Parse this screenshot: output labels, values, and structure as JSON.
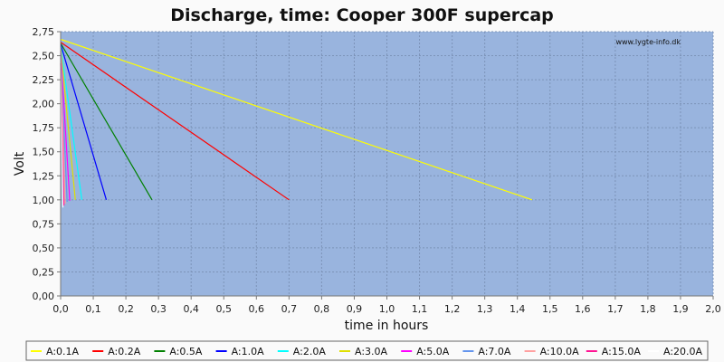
{
  "chart_data": {
    "type": "line",
    "title": "Discharge, time: Cooper 300F supercap",
    "xlabel": "time in hours",
    "ylabel": "Volt",
    "watermark": "www.lygte-info.dk",
    "xlim": [
      0,
      2.0
    ],
    "ylim": [
      0,
      2.75
    ],
    "x_ticks": [
      "0,0",
      "0,1",
      "0,2",
      "0,3",
      "0,4",
      "0,5",
      "0,6",
      "0,7",
      "0,8",
      "0,9",
      "1,0",
      "1,1",
      "1,2",
      "1,3",
      "1,4",
      "1,5",
      "1,6",
      "1,7",
      "1,8",
      "1,9",
      "2,0"
    ],
    "y_ticks": [
      "0,00",
      "0,25",
      "0,50",
      "0,75",
      "1,00",
      "1,25",
      "1,50",
      "1,75",
      "2,00",
      "2,25",
      "2,50",
      "2,75"
    ],
    "grid": true,
    "legend_position": "bottom",
    "background_color": "#99b4de",
    "series": [
      {
        "name": "A:0.1A",
        "color": "#ffff00",
        "x": [
          0,
          1.445
        ],
        "y": [
          2.67,
          1.0
        ]
      },
      {
        "name": "A:0.2A",
        "color": "#ff0000",
        "x": [
          0,
          0.7
        ],
        "y": [
          2.64,
          1.0
        ]
      },
      {
        "name": "A:0.5A",
        "color": "#008000",
        "x": [
          0,
          0.28
        ],
        "y": [
          2.63,
          1.0
        ]
      },
      {
        "name": "A:1.0A",
        "color": "#0000ff",
        "x": [
          0,
          0.14
        ],
        "y": [
          2.62,
          1.0
        ]
      },
      {
        "name": "A:2.0A",
        "color": "#00ffff",
        "x": [
          0,
          0.065
        ],
        "y": [
          2.6,
          1.0
        ]
      },
      {
        "name": "A:3.0A",
        "color": "#e0e000",
        "x": [
          0,
          0.045
        ],
        "y": [
          2.58,
          1.0
        ]
      },
      {
        "name": "A:5.0A",
        "color": "#ff00ff",
        "x": [
          0,
          0.028
        ],
        "y": [
          2.55,
          0.99
        ]
      },
      {
        "name": "A:7.0A",
        "color": "#6495ed",
        "x": [
          0,
          0.02
        ],
        "y": [
          2.52,
          0.98
        ]
      },
      {
        "name": "A:10.0A",
        "color": "#ffa0a0",
        "x": [
          0,
          0.014
        ],
        "y": [
          2.48,
          0.96
        ]
      },
      {
        "name": "A:15.0A",
        "color": "#ff1493",
        "x": [
          0,
          0.01
        ],
        "y": [
          2.42,
          0.94
        ]
      },
      {
        "name": "A:20.0A",
        "color": "#ffffff",
        "x": [
          0,
          0.007
        ],
        "y": [
          2.35,
          0.92
        ]
      }
    ]
  }
}
